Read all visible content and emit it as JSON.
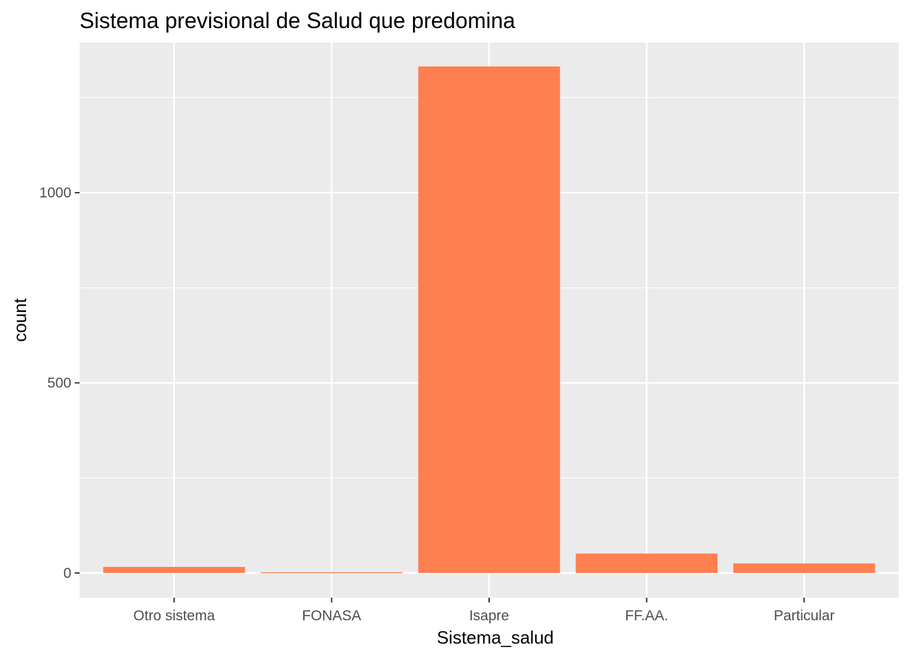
{
  "chart_data": {
    "type": "bar",
    "title": "Sistema previsional de Salud que predomina",
    "xlabel": "Sistema_salud",
    "ylabel": "count",
    "categories": [
      "Otro sistema",
      "FONASA",
      "Isapre",
      "FF.AA.",
      "Particular"
    ],
    "values": [
      16,
      2,
      1332,
      51,
      25
    ],
    "ylim": [
      -65,
      1395
    ],
    "yticks": [
      0,
      500,
      1000
    ],
    "grid": true,
    "legend": "none",
    "colors": {
      "bar": "#FF7F50",
      "panel": "#EBEBEB",
      "grid": "#FFFFFF",
      "tick_text": "#4D4D4D"
    }
  }
}
